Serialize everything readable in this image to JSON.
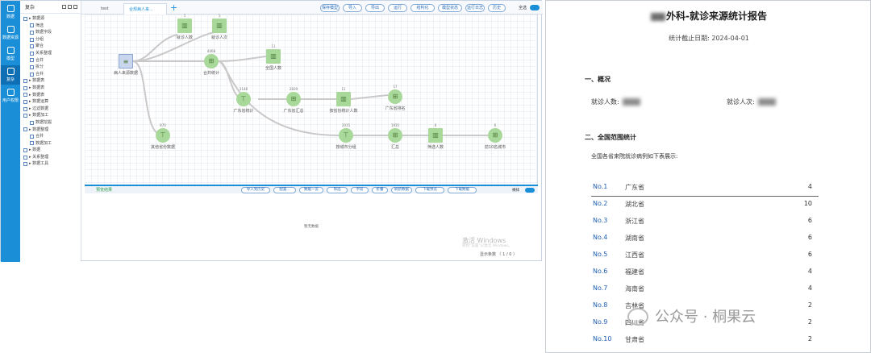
{
  "rail": {
    "items": [
      "数据",
      "数据资源",
      "模型",
      "复杂",
      "用户权限"
    ]
  },
  "tree": {
    "title": "复杂",
    "rows": [
      "▸ 数据源",
      "筛选",
      "数据字段",
      "分组",
      "聚合",
      "关系整理",
      "合并",
      "拆分",
      "合并",
      "▸ 数据表",
      "▸ 数据表",
      "▸ 数据表",
      "▸ 数据运算",
      "▸ 过滤数据",
      "▸ 数据加工",
      "数据挖掘",
      "▸ 数据整理",
      "合并",
      "数据加工",
      "▸ 数据",
      "▸ 关系整理",
      "▸ 数据工具"
    ]
  },
  "topbar": {
    "tabs": [
      "test",
      "合规病人来..."
    ],
    "buttons": [
      "保存模型",
      "导入",
      "导出",
      "运行",
      "结构化",
      "模型状态",
      "运行日志",
      "历史",
      "可视化"
    ],
    "right_label": "全选"
  },
  "legend": [
    {
      "label": "运行成功",
      "color": "#5fbf55"
    },
    {
      "label": "未运行",
      "color": "#e0c14a"
    },
    {
      "label": "运行失败",
      "color": "#e06a5a"
    }
  ],
  "selects": [
    "全部",
    "数量"
  ],
  "nodes": [
    {
      "label": "病人来源数据",
      "count": "",
      "shape": "src",
      "glyph": "≡"
    },
    {
      "label": "就诊人数",
      "count": "1",
      "shape": "s",
      "glyph": "▥"
    },
    {
      "label": "就诊人次",
      "count": "1",
      "shape": "s",
      "glyph": "▥"
    },
    {
      "label": "合并统计",
      "count": "4068",
      "shape": "c",
      "glyph": "⊞"
    },
    {
      "label": "全国人数",
      "count": "11",
      "shape": "s",
      "glyph": "▥"
    },
    {
      "label": "广东省统计",
      "count": "3148",
      "shape": "c",
      "glyph": "⊤"
    },
    {
      "label": "广东省汇总",
      "count": "2839",
      "shape": "c",
      "glyph": "⊞"
    },
    {
      "label": "按省份统计人数",
      "count": "11",
      "shape": "s",
      "glyph": "▥"
    },
    {
      "label": "广东省排名",
      "count": "17",
      "shape": "c",
      "glyph": "⊞"
    },
    {
      "label": "按城市分组",
      "count": "2015",
      "shape": "c",
      "glyph": "⊤"
    },
    {
      "label": "汇总",
      "count": "1935",
      "shape": "c",
      "glyph": "⊞"
    },
    {
      "label": "筛选人数",
      "count": "6",
      "shape": "s",
      "glyph": "▥"
    },
    {
      "label": "前10名城市",
      "count": "6",
      "shape": "c",
      "glyph": "⊞"
    },
    {
      "label": "其他省份数据",
      "count": "870",
      "shape": "c",
      "glyph": "⊤"
    }
  ],
  "bottom": {
    "tab_label": "预览结果",
    "buttons": [
      "导入到历史",
      "配置...",
      "数据一览",
      "筛选",
      "字段",
      "折叠",
      "刷新数据",
      "下载预览",
      "下载数据"
    ],
    "right_label": "横排",
    "preview_text": "暂无数据",
    "win_line1": "激活 Windows",
    "win_line2": "转到“设置”以激活 Windows。",
    "pager": "显示条数  〈  1 / 0  〉"
  },
  "report": {
    "title_suffix": "外科-就诊来源统计报告",
    "date_label": "统计截止日期:",
    "date_value": "2024-04-01",
    "section1": "一、概况",
    "visits_people_label": "就诊人数:",
    "visits_times_label": "就诊人次:",
    "section2": "二、全国范围统计",
    "national_desc": "全国各省来院就诊病例如下表展示:",
    "ranking": [
      {
        "no": "No.1",
        "prov": "广东省",
        "val": "4"
      },
      {
        "no": "No.2",
        "prov": "湖北省",
        "val": "10"
      },
      {
        "no": "No.3",
        "prov": "浙江省",
        "val": "6"
      },
      {
        "no": "No.4",
        "prov": "湖南省",
        "val": "6"
      },
      {
        "no": "No.5",
        "prov": "江西省",
        "val": "6"
      },
      {
        "no": "No.6",
        "prov": "福建省",
        "val": "4"
      },
      {
        "no": "No.7",
        "prov": "海南省",
        "val": "4"
      },
      {
        "no": "No.8",
        "prov": "吉林省",
        "val": "2"
      },
      {
        "no": "No.9",
        "prov": "四川省",
        "val": "2"
      },
      {
        "no": "No.10",
        "prov": "甘肃省",
        "val": "2"
      }
    ]
  },
  "watermark": "公众号 · 桐果云"
}
